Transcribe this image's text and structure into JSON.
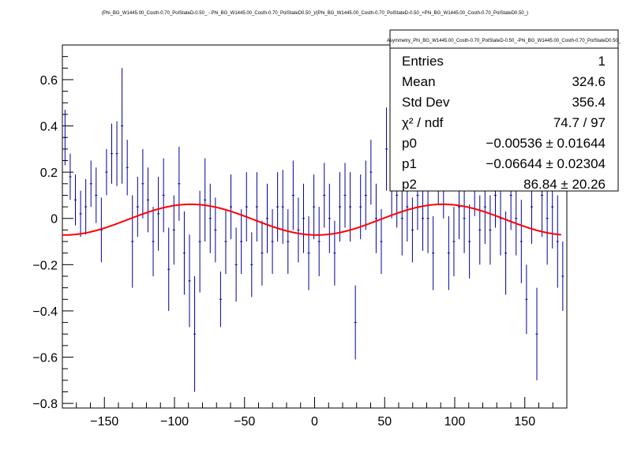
{
  "chart_data": {
    "type": "scatter",
    "title": "(Phi_BG_W1445.00_Costh-0.70_PolStateD-0.50_ - Phi_BG_W1445.00_Costh-0.70_PolStateD0.50_)/(Phi_BG_W1445.00_Costh-0.70_PolStateD-0.50_+Phi_BG_W1445.00_Costh-0.70_PolStateD0.50_)",
    "xlim": [
      -180,
      180
    ],
    "ylim": [
      -0.82,
      0.75
    ],
    "x_ticks": [
      -150,
      -100,
      -50,
      0,
      50,
      100,
      150
    ],
    "x_tick_labels": [
      "−150",
      "−100",
      "−50",
      "0",
      "50",
      "100",
      "150"
    ],
    "y_ticks": [
      -0.8,
      -0.6,
      -0.4,
      -0.2,
      0,
      0.2,
      0.4,
      0.6
    ],
    "y_tick_labels": [
      "−0.8",
      "−0.6",
      "−0.4",
      "−0.2",
      "0",
      "0.2",
      "0.4",
      "0.6"
    ],
    "grid": false,
    "stats_box": {
      "name": "Asymmetry_Phi_BG_W1445.00_Costh-0.70_PolStateD-0.50_-Phi_BG_W1445.00_Costh-0.70_PolStateD0.50_",
      "rows": [
        {
          "label": "Entries",
          "value": "1"
        },
        {
          "label": "Mean",
          "value": "324.6"
        },
        {
          "label": "Std Dev",
          "value": "356.4"
        },
        {
          "label": "χ² / ndf",
          "value": "74.7 / 97"
        },
        {
          "label": "p0",
          "value": "−0.00536 ± 0.01644"
        },
        {
          "label": "p1",
          "value": "−0.06644 ± 0.02304"
        },
        {
          "label": "p2",
          "value": "86.84 ± 20.26"
        }
      ]
    },
    "fit": {
      "p0": -0.00536,
      "p1": -0.06644,
      "p2": 86.84,
      "color": "#ff0000"
    },
    "marker_color": "#000099",
    "series": [
      {
        "x": [
          -178.1,
          -174.4,
          -170.7,
          -167.0,
          -163.3,
          -159.6,
          -155.9,
          -152.2,
          -148.5,
          -144.8,
          -141.1,
          -137.4,
          -133.7,
          -130.0,
          -126.3,
          -122.6,
          -118.9,
          -115.2,
          -111.5,
          -107.8,
          -104.1,
          -100.4,
          -96.7,
          -93.0,
          -89.3,
          -85.6,
          -81.9,
          -78.2,
          -74.5,
          -70.8,
          -67.1,
          -63.4,
          -59.7,
          -56.0,
          -52.3,
          -48.6,
          -44.9,
          -41.2,
          -37.5,
          -33.8,
          -30.1,
          -26.4,
          -22.7,
          -19.0,
          -15.3,
          -11.6,
          -7.9,
          -4.2,
          -0.5,
          3.2,
          6.9,
          10.6,
          14.3,
          18.0,
          21.7,
          25.4,
          29.1,
          32.8,
          36.5,
          40.2,
          43.9,
          47.6,
          51.3,
          55.0,
          58.7,
          62.4,
          66.1,
          69.8,
          73.5,
          77.2,
          80.9,
          84.6,
          88.3,
          92.0,
          95.7,
          99.4,
          103.1,
          106.8,
          110.5,
          114.2,
          117.9,
          121.6,
          125.3,
          129.0,
          132.7,
          136.4,
          140.1,
          143.8,
          147.5,
          151.2,
          154.9,
          158.6,
          162.3,
          166.0,
          169.7,
          173.4,
          177.1
        ],
        "y": [
          0.35,
          0.18,
          0.08,
          0.02,
          0.05,
          0.15,
          0.1,
          -0.05,
          0.2,
          0.28,
          0.28,
          0.4,
          0.22,
          -0.1,
          0.05,
          0.15,
          0.08,
          -0.1,
          0.02,
          0.1,
          -0.22,
          -0.05,
          0.15,
          -0.15,
          -0.27,
          -0.5,
          -0.1,
          0.08,
          0.0,
          -0.05,
          -0.35,
          -0.1,
          0.05,
          -0.2,
          -0.1,
          0.05,
          -0.2,
          0.05,
          -0.15,
          0.0,
          -0.1,
          0.05,
          0.05,
          -0.1,
          0.1,
          -0.05,
          0.0,
          -0.15,
          0.05,
          -0.1,
          0.1,
          0.0,
          -0.15,
          0.05,
          0.1,
          0.05,
          -0.45,
          0.05,
          0.1,
          0.2,
          0.0,
          -0.1,
          0.3,
          0.15,
          0.1,
          0.0,
          0.05,
          -0.05,
          0.1,
          0.0,
          0.0,
          -0.15,
          0.2,
          0.15,
          -0.15,
          -0.1,
          0.05,
          0.0,
          -0.1,
          0.15,
          -0.05,
          0.05,
          -0.05,
          0.1,
          0.0,
          -0.15,
          0.1,
          0.0,
          -0.1,
          -0.35,
          0.05,
          -0.5,
          0.1,
          0.0,
          0.05,
          -0.1,
          -0.25
        ],
        "err": [
          0.12,
          0.1,
          0.11,
          0.1,
          0.12,
          0.1,
          0.12,
          0.14,
          0.1,
          0.13,
          0.14,
          0.25,
          0.12,
          0.2,
          0.13,
          0.15,
          0.14,
          0.15,
          0.16,
          0.16,
          0.18,
          0.15,
          0.16,
          0.18,
          0.2,
          0.25,
          0.22,
          0.18,
          0.15,
          0.14,
          0.12,
          0.14,
          0.14,
          0.16,
          0.14,
          0.15,
          0.14,
          0.15,
          0.14,
          0.15,
          0.14,
          0.15,
          0.16,
          0.14,
          0.15,
          0.14,
          0.15,
          0.16,
          0.14,
          0.15,
          0.14,
          0.15,
          0.14,
          0.15,
          0.14,
          0.15,
          0.16,
          0.14,
          0.15,
          0.14,
          0.15,
          0.14,
          0.18,
          0.15,
          0.14,
          0.16,
          0.15,
          0.14,
          0.15,
          0.14,
          0.15,
          0.16,
          0.14,
          0.15,
          0.16,
          0.15,
          0.14,
          0.15,
          0.16,
          0.14,
          0.15,
          0.16,
          0.15,
          0.14,
          0.16,
          0.18,
          0.15,
          0.16,
          0.18,
          0.15,
          0.16,
          0.2,
          0.18,
          0.2,
          0.18,
          0.2,
          0.15
        ]
      }
    ]
  }
}
